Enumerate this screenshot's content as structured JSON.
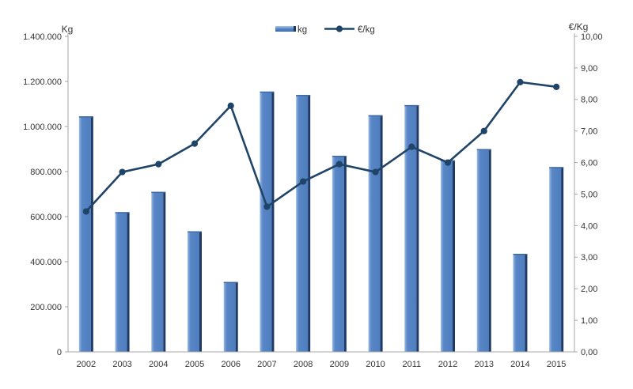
{
  "chart_data": {
    "type": "combo-bar-line",
    "categories": [
      "2002",
      "2003",
      "2004",
      "2005",
      "2006",
      "2007",
      "2008",
      "2009",
      "2010",
      "2011",
      "2012",
      "2013",
      "2014",
      "2015"
    ],
    "series": [
      {
        "name": "kg",
        "type": "bar",
        "axis": "left",
        "values": [
          1045000,
          620000,
          710000,
          535000,
          310000,
          1155000,
          1140000,
          870000,
          1050000,
          1095000,
          850000,
          900000,
          435000,
          820000
        ]
      },
      {
        "name": "€/kg",
        "type": "line",
        "axis": "right",
        "values": [
          4.45,
          5.7,
          5.95,
          6.6,
          7.8,
          4.6,
          5.4,
          5.95,
          5.7,
          6.5,
          6.0,
          7.0,
          8.55,
          8.4
        ]
      }
    ],
    "left_axis": {
      "title": "Kg",
      "min": 0,
      "max": 1400000,
      "step": 200000,
      "tick_labels": [
        "0",
        "200.000",
        "400.000",
        "600.000",
        "800.000",
        "1.000.000",
        "1.200.000",
        "1.400.000"
      ]
    },
    "right_axis": {
      "title": "€/Kg",
      "min": 0,
      "max": 10,
      "step": 1,
      "tick_labels": [
        "0,00",
        "1,00",
        "2,00",
        "3,00",
        "4,00",
        "5,00",
        "6,00",
        "7,00",
        "8,00",
        "9,00",
        "10,00"
      ]
    },
    "legend": {
      "position": "top-center",
      "entries": [
        "kg",
        "€/kg"
      ]
    },
    "grid": "off",
    "colors": {
      "bar_fill": "#5585C6",
      "bar_highlight": "#93B6E0",
      "bar_shadow": "#1F3A66",
      "bar_top_cap": "#3E689F",
      "line": "#1F4467",
      "axis_line": "#A6A6A6",
      "text": "#353535"
    }
  }
}
